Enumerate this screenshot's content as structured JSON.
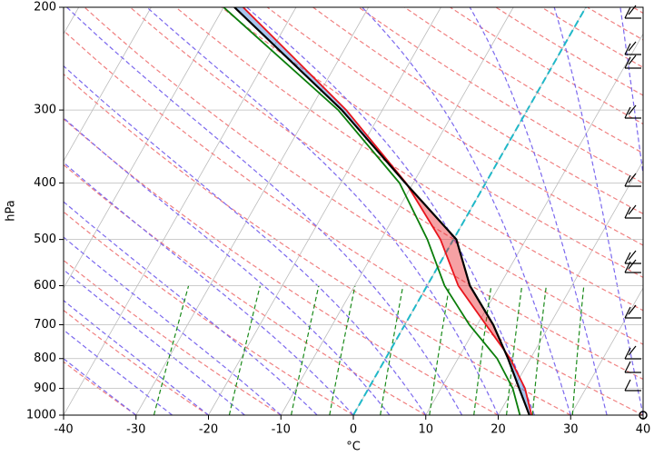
{
  "chart_data": {
    "type": "skewt",
    "xlabel": "°C",
    "ylabel": "hPa",
    "xlim": [
      -40,
      40
    ],
    "ylim": [
      1000,
      200
    ],
    "log_y": true,
    "grid": true,
    "xticks": [
      -40,
      -30,
      -20,
      -10,
      0,
      10,
      20,
      30,
      40
    ],
    "yticks": [
      1000,
      900,
      800,
      700,
      600,
      500,
      400,
      300,
      200
    ],
    "pressure": [
      1000,
      900,
      800,
      700,
      600,
      500,
      400,
      300,
      200
    ],
    "series": [
      {
        "color": "#e8141c",
        "values": [
          24.6,
          21.6,
          17.2,
          11.2,
          4.3,
          -1.8,
          -11,
          -25,
          -47.3
        ]
      },
      {
        "color": "#0a7d0a",
        "values": [
          23,
          19.9,
          15.4,
          8.9,
          2.4,
          -3.6,
          -11.9,
          -26.1,
          -50
        ]
      },
      {
        "color": "#000000",
        "values": [
          24.3,
          20.8,
          16.9,
          12.2,
          5.9,
          0.4,
          -11.1,
          -25.6,
          -48.5
        ]
      }
    ]
  }
}
